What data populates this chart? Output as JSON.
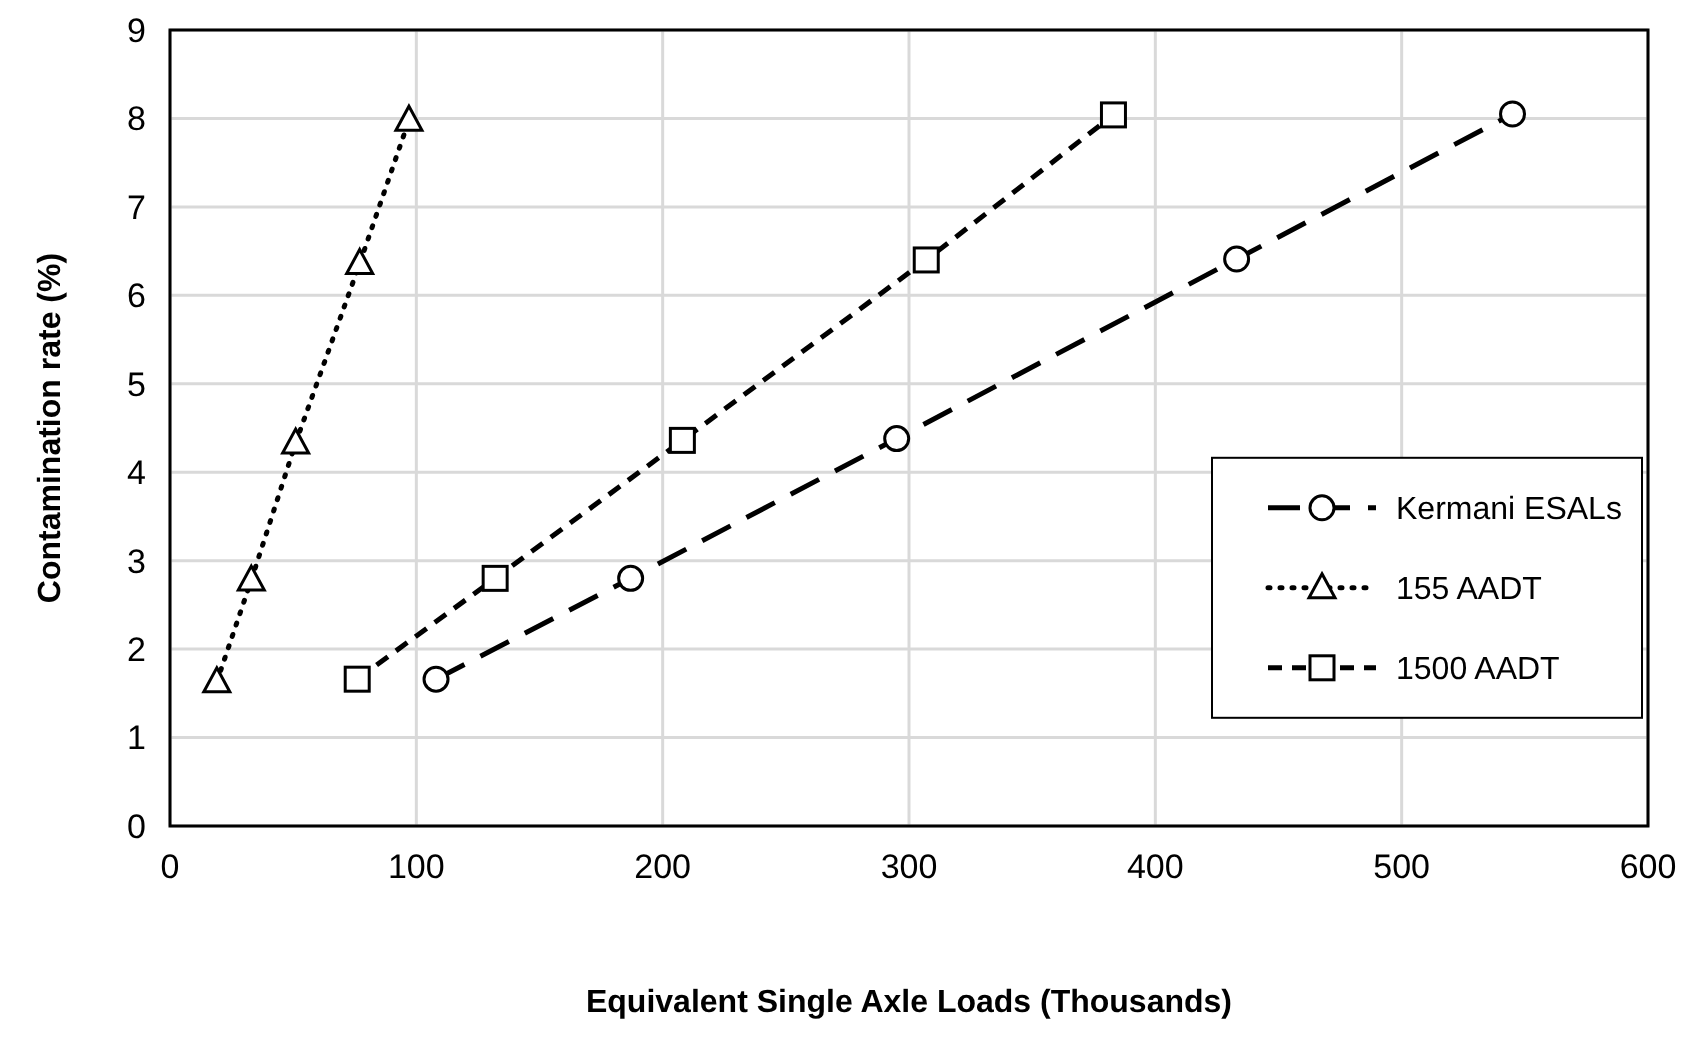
{
  "chart_data": {
    "type": "line",
    "xlabel": "Equivalent Single Axle Loads (Thousands)",
    "ylabel": "Contamination rate (%)",
    "xlim": [
      0,
      600
    ],
    "xticks": [
      0,
      100,
      200,
      300,
      400,
      500,
      600
    ],
    "ylim": [
      0,
      9
    ],
    "yticks": [
      0,
      1,
      2,
      3,
      4,
      5,
      6,
      7,
      8,
      9
    ],
    "grid": true,
    "legend": "right",
    "series": [
      {
        "name": "Kermani ESALs",
        "color": "#000000",
        "marker": "circle",
        "line_style": "longdash",
        "x": [
          108,
          187,
          295,
          433,
          545
        ],
        "values": [
          1.66,
          2.8,
          4.38,
          6.41,
          8.05
        ]
      },
      {
        "name": "155 AADT",
        "color": "#000000",
        "marker": "triangle",
        "line_style": "dotted",
        "x": [
          19,
          33,
          51,
          77,
          97
        ],
        "values": [
          1.63,
          2.78,
          4.33,
          6.36,
          7.98
        ]
      },
      {
        "name": "1500 AADT",
        "color": "#000000",
        "marker": "square",
        "line_style": "dashed",
        "x": [
          76,
          132,
          208,
          307,
          383
        ],
        "values": [
          1.66,
          2.8,
          4.36,
          6.4,
          8.04
        ]
      }
    ]
  }
}
